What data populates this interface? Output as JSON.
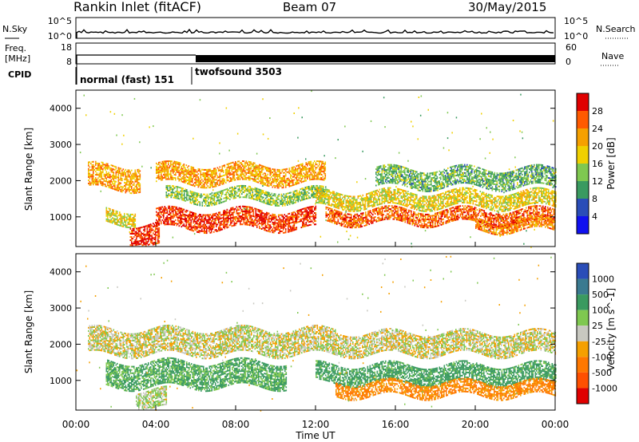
{
  "header": {
    "station": "Rankin Inlet (fitACF)",
    "beam": "Beam 07",
    "date": "30/May/2015"
  },
  "sky_panel": {
    "left_label": "N.Sky",
    "right_label": "N.Search",
    "tick_top": "10^5",
    "tick_bottom": "10^0"
  },
  "freq_panel": {
    "left_label_1": "Freq.",
    "left_label_2": "[MHz]",
    "left_tick_top": "18",
    "left_tick_bottom": "8",
    "right_label": "Nave",
    "right_tick_top": "60",
    "right_tick_bottom": "0"
  },
  "cpid_panel": {
    "label": "CPID",
    "modes": [
      {
        "label": "normal (fast) 151",
        "start_hour": 0
      },
      {
        "label": "twofsound 3503",
        "start_hour": 6
      }
    ]
  },
  "chart_data": [
    {
      "type": "heatmap",
      "panel": "power",
      "xlabel": "Time UT",
      "ylabel": "Slant Range [km]",
      "xlim": [
        0,
        24
      ],
      "ylim": [
        180,
        4500
      ],
      "yticks": [
        "1000",
        "2000",
        "3000",
        "4000"
      ],
      "colorbar_label": "Power [dB]",
      "colorbar_ticks": [
        "28",
        "24",
        "20",
        "16",
        "12",
        "8",
        "4"
      ],
      "colorbar_colors": [
        "#e00000",
        "#ff5a00",
        "#f5a000",
        "#f0d000",
        "#7fc850",
        "#3a9a60",
        "#2a4db8",
        "#1010f0"
      ],
      "bands": [
        {
          "t0": 0.6,
          "t1": 3.2,
          "r0": 1750,
          "r1": 2400,
          "level": 20
        },
        {
          "t0": 1.5,
          "t1": 3.0,
          "r0": 800,
          "r1": 1200,
          "level": 16
        },
        {
          "t0": 2.7,
          "t1": 4.2,
          "r0": 180,
          "r1": 800,
          "level": 26
        },
        {
          "t0": 4.0,
          "t1": 12.5,
          "r0": 1900,
          "r1": 2400,
          "level": 20
        },
        {
          "t0": 4.5,
          "t1": 12.5,
          "r0": 1400,
          "r1": 1750,
          "level": 12
        },
        {
          "t0": 4.0,
          "t1": 12.0,
          "r0": 650,
          "r1": 1150,
          "level": 26
        },
        {
          "t0": 12.0,
          "t1": 24.0,
          "r0": 1250,
          "r1": 1700,
          "level": 16
        },
        {
          "t0": 12.5,
          "t1": 24.0,
          "r0": 800,
          "r1": 1200,
          "level": 24
        },
        {
          "t0": 15.0,
          "t1": 24.0,
          "r0": 1800,
          "r1": 2300,
          "level": 10
        },
        {
          "t0": 20.0,
          "t1": 24.0,
          "r0": 600,
          "r1": 900,
          "level": 22
        }
      ]
    },
    {
      "type": "heatmap",
      "panel": "velocity",
      "xlabel": "Time UT",
      "ylabel": "Slant Range [km]",
      "xlim": [
        0,
        24
      ],
      "ylim": [
        180,
        4500
      ],
      "xticks": [
        "00:00",
        "04:00",
        "08:00",
        "12:00",
        "16:00",
        "20:00",
        "00:00"
      ],
      "yticks": [
        "1000",
        "2000",
        "3000",
        "4000"
      ],
      "colorbar_label": "Velocity [m s^-1]",
      "colorbar_ticks": [
        "1000",
        "500",
        "100",
        "25",
        "-25",
        "-100",
        "-500",
        "-1000"
      ],
      "colorbar_colors": [
        "#2a4db8",
        "#3a7a90",
        "#3a9a60",
        "#7fc850",
        "#c8c8c0",
        "#f5a000",
        "#ff7800",
        "#ff5000",
        "#e00000"
      ],
      "bands": [
        {
          "t0": 0.6,
          "t1": 13.0,
          "r0": 1700,
          "r1": 2400,
          "level": 0
        },
        {
          "t0": 1.5,
          "t1": 10.5,
          "r0": 800,
          "r1": 1500,
          "level": 120
        },
        {
          "t0": 3.0,
          "t1": 4.5,
          "r0": 200,
          "r1": 700,
          "level": 30
        },
        {
          "t0": 12.0,
          "t1": 24.0,
          "r0": 900,
          "r1": 1400,
          "level": 150
        },
        {
          "t0": 13.0,
          "t1": 24.0,
          "r0": 550,
          "r1": 950,
          "level": -120
        },
        {
          "t0": 13.0,
          "t1": 24.0,
          "r0": 1700,
          "r1": 2300,
          "level": 0
        }
      ]
    }
  ]
}
